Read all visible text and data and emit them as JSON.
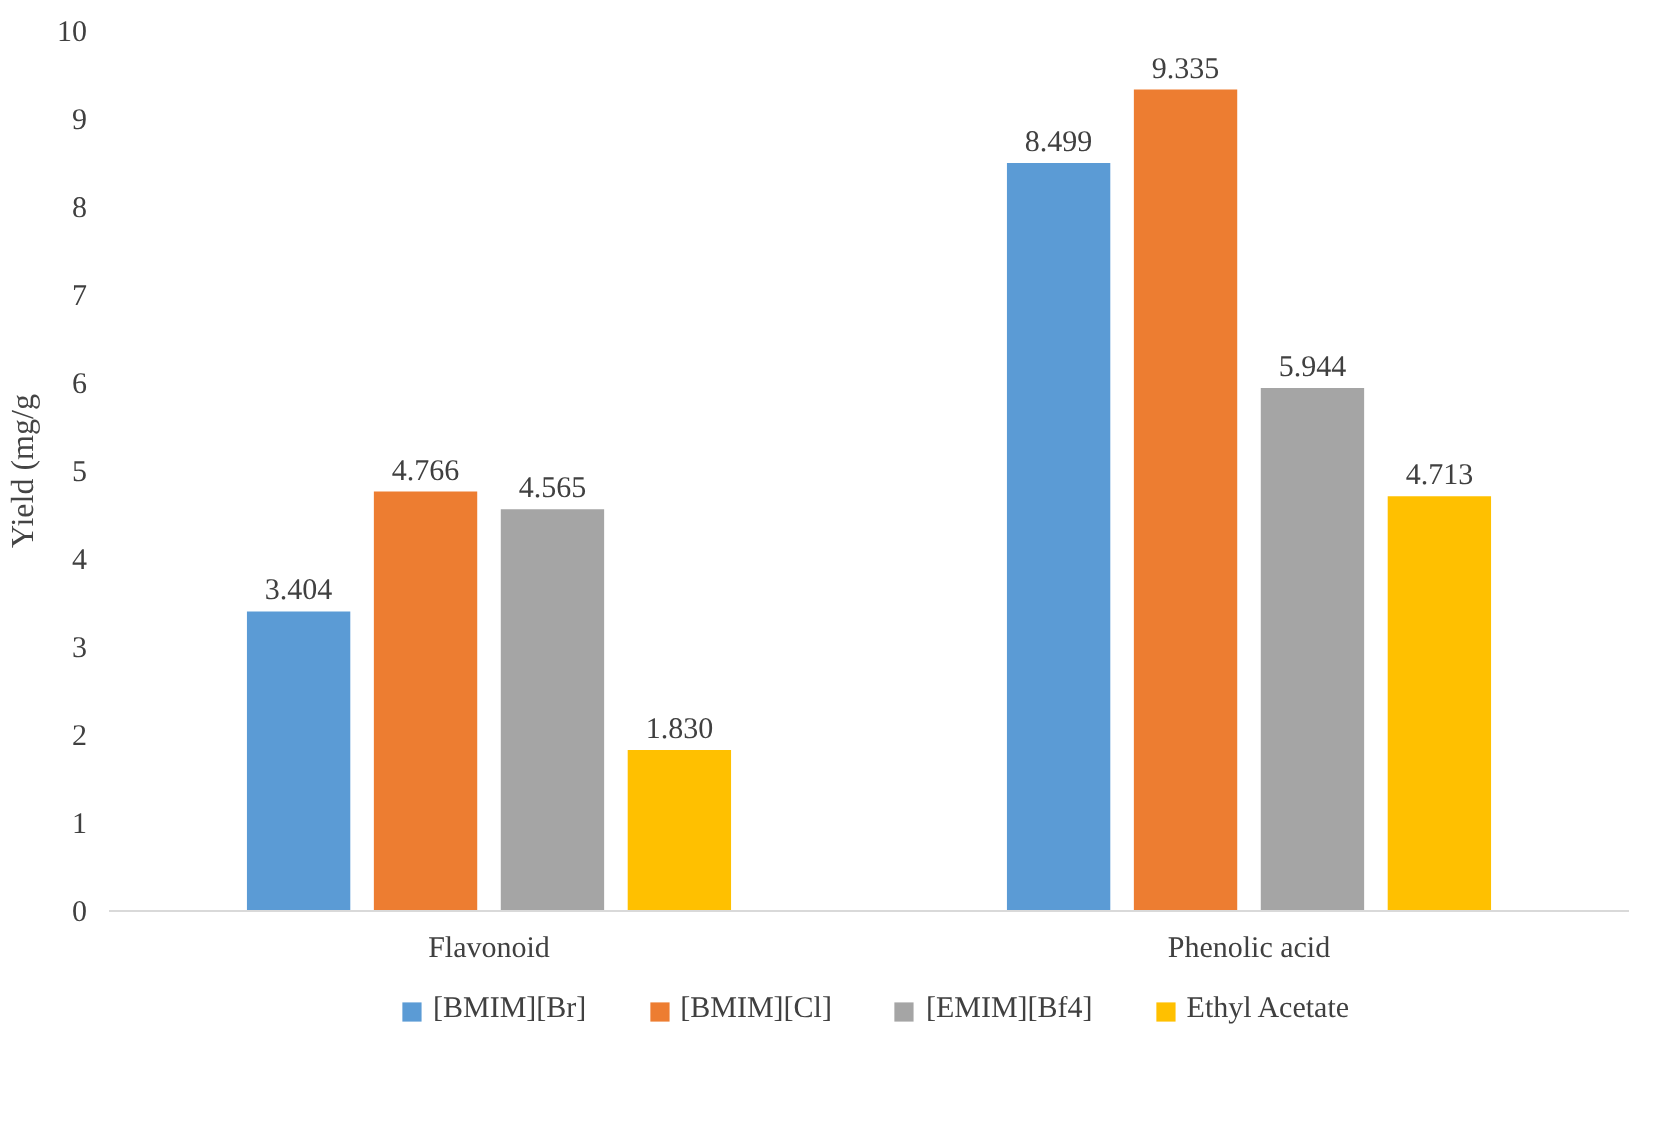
{
  "chart_data": {
    "type": "bar",
    "ylabel": "Yield (mg/g",
    "categories": [
      "Flavonoid",
      "Phenolic acid"
    ],
    "series": [
      {
        "name": "[BMIM][Br]",
        "color": "#5b9bd5",
        "values": [
          3.404,
          8.499
        ],
        "value_labels": [
          "3.404",
          "8.499"
        ]
      },
      {
        "name": "[BMIM][Cl]",
        "color": "#ed7d31",
        "values": [
          4.766,
          9.335
        ],
        "value_labels": [
          "4.766",
          "9.335"
        ]
      },
      {
        "name": "[EMIM][Bf4]",
        "color": "#a5a5a5",
        "values": [
          4.565,
          5.944
        ],
        "value_labels": [
          "4.565",
          "5.944"
        ]
      },
      {
        "name": "Ethyl Acetate",
        "color": "#ffc000",
        "values": [
          1.83,
          4.713
        ],
        "value_labels": [
          "1.830",
          "4.713"
        ]
      }
    ],
    "ylim": [
      0,
      10
    ],
    "yticks": [
      0,
      1,
      2,
      3,
      4,
      5,
      6,
      7,
      8,
      9,
      10
    ],
    "grid": false,
    "legend": "bottom"
  }
}
